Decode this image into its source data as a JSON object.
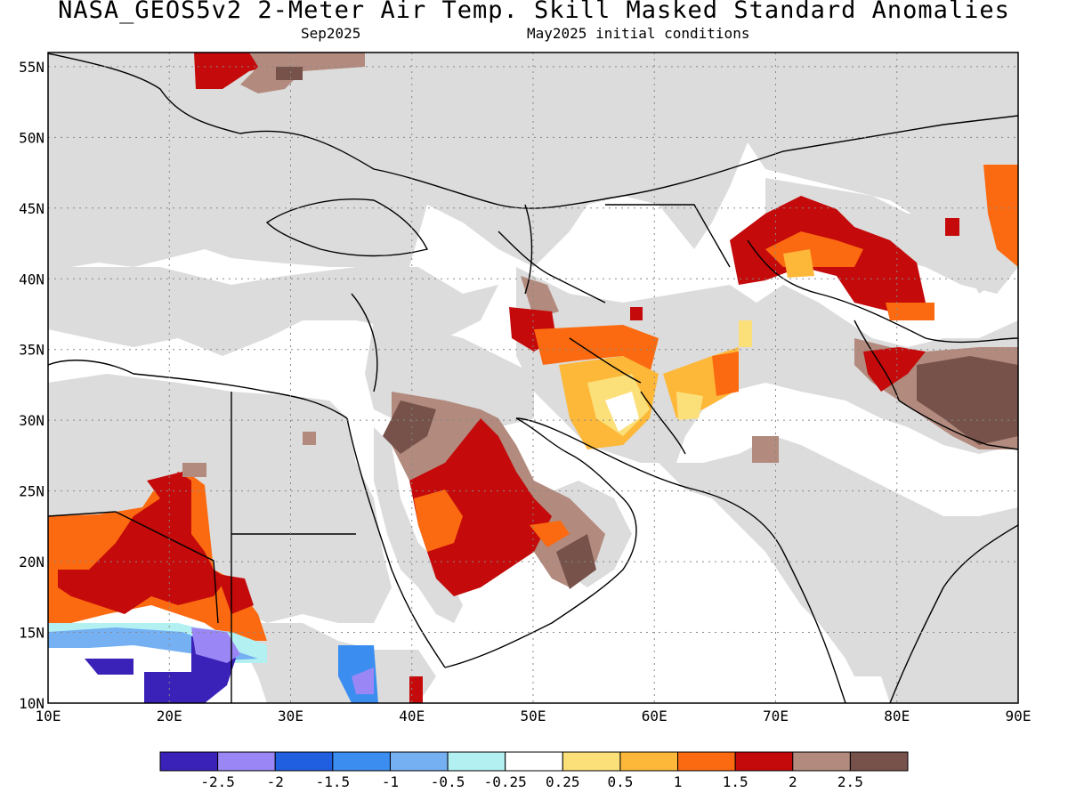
{
  "header": {
    "title": "NASA_GEOS5v2 2-Meter Air Temp. Skill Masked Standard Anomalies",
    "month": "Sep2025",
    "init": "May2025 initial conditions"
  },
  "map": {
    "lon_range": [
      10,
      90
    ],
    "lat_range": [
      10,
      56
    ],
    "lon_labels": [
      "10E",
      "20E",
      "30E",
      "40E",
      "50E",
      "60E",
      "70E",
      "80E",
      "90E"
    ],
    "lat_labels": [
      "10N",
      "15N",
      "20N",
      "25N",
      "30N",
      "35N",
      "40N",
      "45N",
      "50N",
      "55N"
    ],
    "mask_color": "#dcdcdc",
    "grid": "dotted"
  },
  "colorbar": {
    "colors": [
      "#3a22b8",
      "#9b86f5",
      "#1f5fe0",
      "#3b8ef0",
      "#74b0f2",
      "#b2f0f2",
      "#ffffff",
      "#fbe07a",
      "#fdb83a",
      "#fb6a10",
      "#c40a0a",
      "#b28a7e",
      "#76524a"
    ],
    "labels": [
      "-2.5",
      "-2",
      "-1.5",
      "-1",
      "-0.5",
      "-0.25",
      "0.25",
      "0.5",
      "1",
      "1.5",
      "2",
      "2.5"
    ]
  }
}
